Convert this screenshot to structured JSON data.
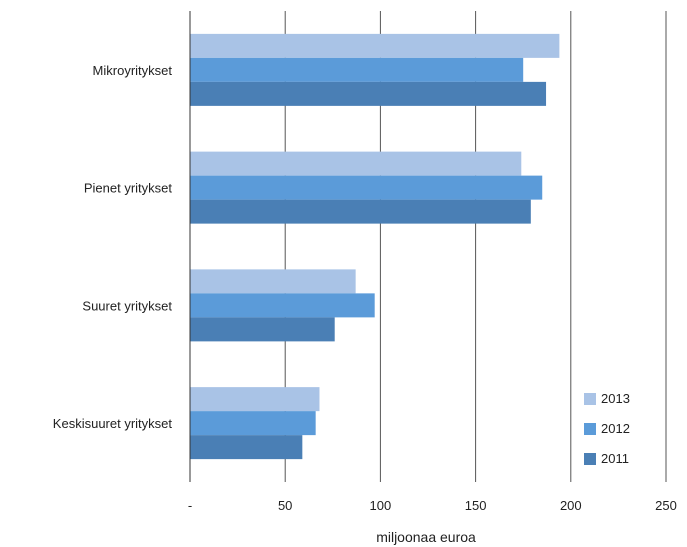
{
  "chart_data": {
    "type": "bar",
    "orientation": "horizontal",
    "categories": [
      "Mikroyritykset",
      "Pienet yritykset",
      "Suuret yritykset",
      "Keskisuuret yritykset"
    ],
    "series": [
      {
        "name": "2013",
        "color": "#a9c3e6",
        "values": [
          194,
          174,
          87,
          68
        ]
      },
      {
        "name": "2012",
        "color": "#5b9bd9",
        "values": [
          175,
          185,
          97,
          66
        ]
      },
      {
        "name": "2011",
        "color": "#4a7fb5",
        "values": [
          187,
          179,
          76,
          59
        ]
      }
    ],
    "xlim": [
      0,
      250
    ],
    "xticks": [
      "-",
      "50",
      "100",
      "150",
      "200",
      "250"
    ],
    "xlabel": "miljoonaa euroa",
    "ylabel": "",
    "title": "",
    "grid": "vertical",
    "legend": "bottom-right"
  }
}
